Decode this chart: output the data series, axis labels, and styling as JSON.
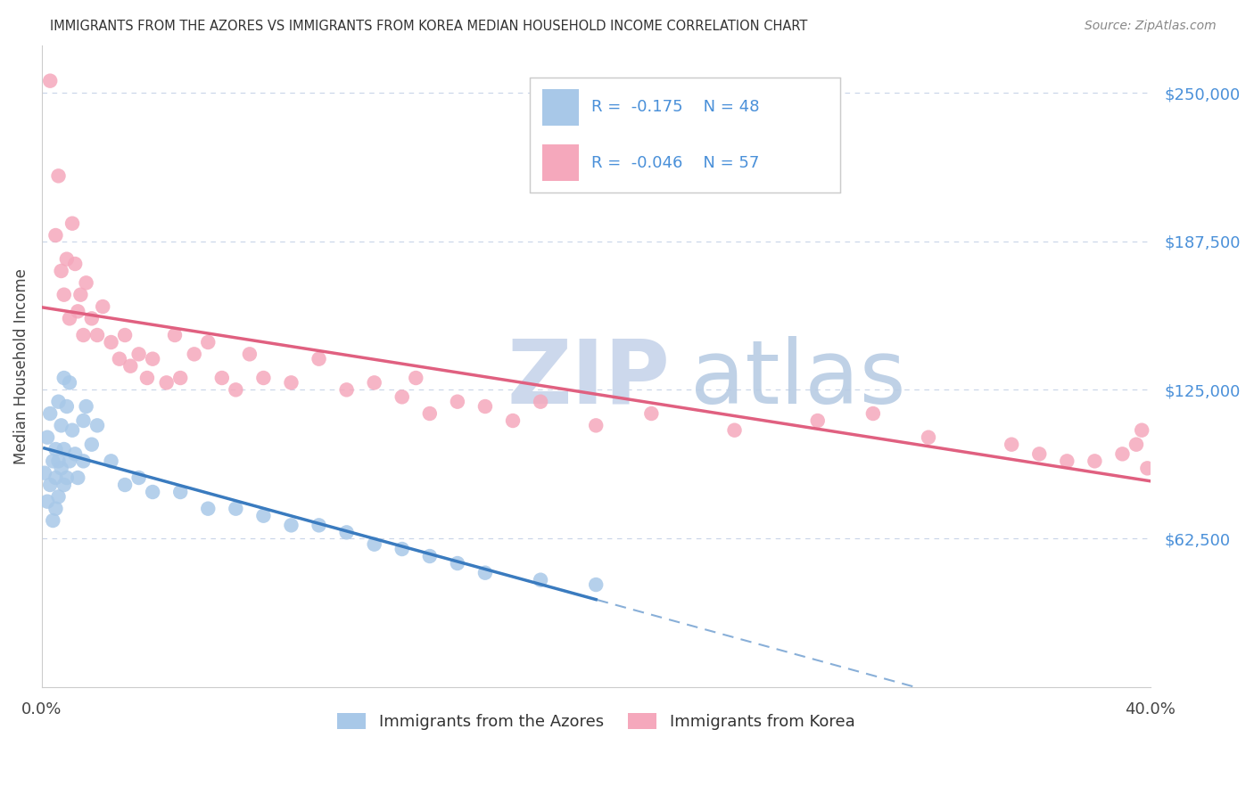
{
  "title": "IMMIGRANTS FROM THE AZORES VS IMMIGRANTS FROM KOREA MEDIAN HOUSEHOLD INCOME CORRELATION CHART",
  "source": "Source: ZipAtlas.com",
  "ylabel": "Median Household Income",
  "yticks": [
    62500,
    125000,
    187500,
    250000
  ],
  "ytick_labels": [
    "$62,500",
    "$125,000",
    "$187,500",
    "$250,000"
  ],
  "xlim": [
    0.0,
    0.4
  ],
  "ylim": [
    0,
    270000
  ],
  "azores_color": "#a8c8e8",
  "korea_color": "#f5a8bc",
  "azores_line_color": "#3a7bbf",
  "korea_line_color": "#e06080",
  "azores_R": -0.175,
  "azores_N": 48,
  "korea_R": -0.046,
  "korea_N": 57,
  "legend_azores": "Immigrants from the Azores",
  "legend_korea": "Immigrants from Korea",
  "background_color": "#ffffff",
  "grid_color": "#c8d4e8",
  "tick_label_color": "#4a90d9",
  "azores_scatter_x": [
    0.001,
    0.002,
    0.002,
    0.003,
    0.003,
    0.004,
    0.004,
    0.005,
    0.005,
    0.005,
    0.006,
    0.006,
    0.006,
    0.007,
    0.007,
    0.008,
    0.008,
    0.008,
    0.009,
    0.009,
    0.01,
    0.01,
    0.011,
    0.012,
    0.013,
    0.015,
    0.015,
    0.016,
    0.018,
    0.02,
    0.025,
    0.03,
    0.035,
    0.04,
    0.05,
    0.06,
    0.07,
    0.08,
    0.09,
    0.1,
    0.11,
    0.12,
    0.13,
    0.14,
    0.15,
    0.16,
    0.18,
    0.2
  ],
  "azores_scatter_y": [
    90000,
    78000,
    105000,
    85000,
    115000,
    70000,
    95000,
    88000,
    100000,
    75000,
    120000,
    95000,
    80000,
    110000,
    92000,
    130000,
    100000,
    85000,
    118000,
    88000,
    128000,
    95000,
    108000,
    98000,
    88000,
    112000,
    95000,
    118000,
    102000,
    110000,
    95000,
    85000,
    88000,
    82000,
    82000,
    75000,
    75000,
    72000,
    68000,
    68000,
    65000,
    60000,
    58000,
    55000,
    52000,
    48000,
    45000,
    43000
  ],
  "korea_scatter_x": [
    0.003,
    0.005,
    0.006,
    0.007,
    0.008,
    0.009,
    0.01,
    0.011,
    0.012,
    0.013,
    0.014,
    0.015,
    0.016,
    0.018,
    0.02,
    0.022,
    0.025,
    0.028,
    0.03,
    0.032,
    0.035,
    0.038,
    0.04,
    0.045,
    0.048,
    0.05,
    0.055,
    0.06,
    0.065,
    0.07,
    0.075,
    0.08,
    0.09,
    0.1,
    0.11,
    0.12,
    0.13,
    0.135,
    0.14,
    0.15,
    0.16,
    0.17,
    0.18,
    0.2,
    0.22,
    0.25,
    0.28,
    0.3,
    0.32,
    0.35,
    0.36,
    0.37,
    0.38,
    0.39,
    0.395,
    0.397,
    0.399
  ],
  "korea_scatter_y": [
    255000,
    190000,
    215000,
    175000,
    165000,
    180000,
    155000,
    195000,
    178000,
    158000,
    165000,
    148000,
    170000,
    155000,
    148000,
    160000,
    145000,
    138000,
    148000,
    135000,
    140000,
    130000,
    138000,
    128000,
    148000,
    130000,
    140000,
    145000,
    130000,
    125000,
    140000,
    130000,
    128000,
    138000,
    125000,
    128000,
    122000,
    130000,
    115000,
    120000,
    118000,
    112000,
    120000,
    110000,
    115000,
    108000,
    112000,
    115000,
    105000,
    102000,
    98000,
    95000,
    95000,
    98000,
    102000,
    108000,
    92000
  ]
}
